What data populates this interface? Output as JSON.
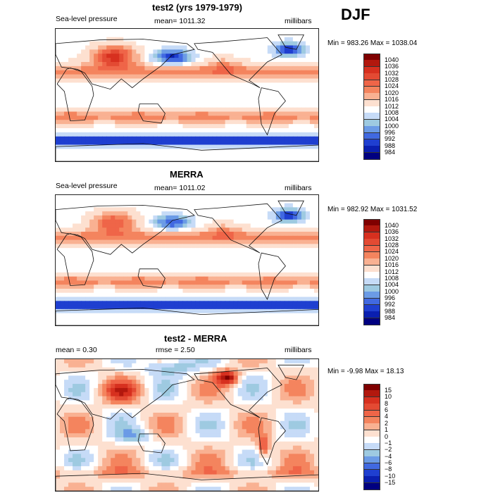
{
  "season": "DJF",
  "panels": [
    {
      "id": "test2",
      "title": "test2 (yrs 1979-1979)",
      "left": "Sea-level pressure",
      "center": "mean= 1011.32",
      "units": "millibars",
      "minmax": "Min = 983.26 Max = 1038.04",
      "field": "slp_model"
    },
    {
      "id": "merra",
      "title": "MERRA",
      "left": "Sea-level pressure",
      "center": "mean= 1011.02",
      "units": "millibars",
      "minmax": "Min = 982.92 Max = 1031.52",
      "field": "slp_obs"
    },
    {
      "id": "diff",
      "title": "test2 - MERRA",
      "left": "mean =    0.30",
      "center": "rmse =    2.50",
      "units": "millibars",
      "minmax": "Min =  -9.98 Max =  18.13",
      "field": "diff"
    }
  ],
  "colorbars": {
    "slp": {
      "labels": [
        "1040",
        "1036",
        "1032",
        "1028",
        "1024",
        "1020",
        "1016",
        "1012",
        "1008",
        "1004",
        "1000",
        "996",
        "992",
        "988",
        "984"
      ],
      "colors": [
        "#7f0000",
        "#b2180e",
        "#d7301f",
        "#e34a33",
        "#ef6548",
        "#f4845e",
        "#f9b192",
        "#fde0d0",
        "#ffffff",
        "#c6dbf7",
        "#9ecae1",
        "#6b9be6",
        "#4169e1",
        "#1f3fd0",
        "#0a1fb0",
        "#000080"
      ]
    },
    "diff": {
      "labels": [
        "15",
        "10",
        "8",
        "6",
        "4",
        "2",
        "1",
        "0",
        "−1",
        "−2",
        "−4",
        "−6",
        "−8",
        "−10",
        "−15"
      ],
      "colors": [
        "#7f0000",
        "#b2180e",
        "#d7301f",
        "#e34a33",
        "#ef6548",
        "#f4845e",
        "#f9b192",
        "#fde0d0",
        "#ffffff",
        "#c6dbf7",
        "#9ecae1",
        "#6b9be6",
        "#4169e1",
        "#1f3fd0",
        "#0a1fb0",
        "#000080"
      ]
    }
  }
}
